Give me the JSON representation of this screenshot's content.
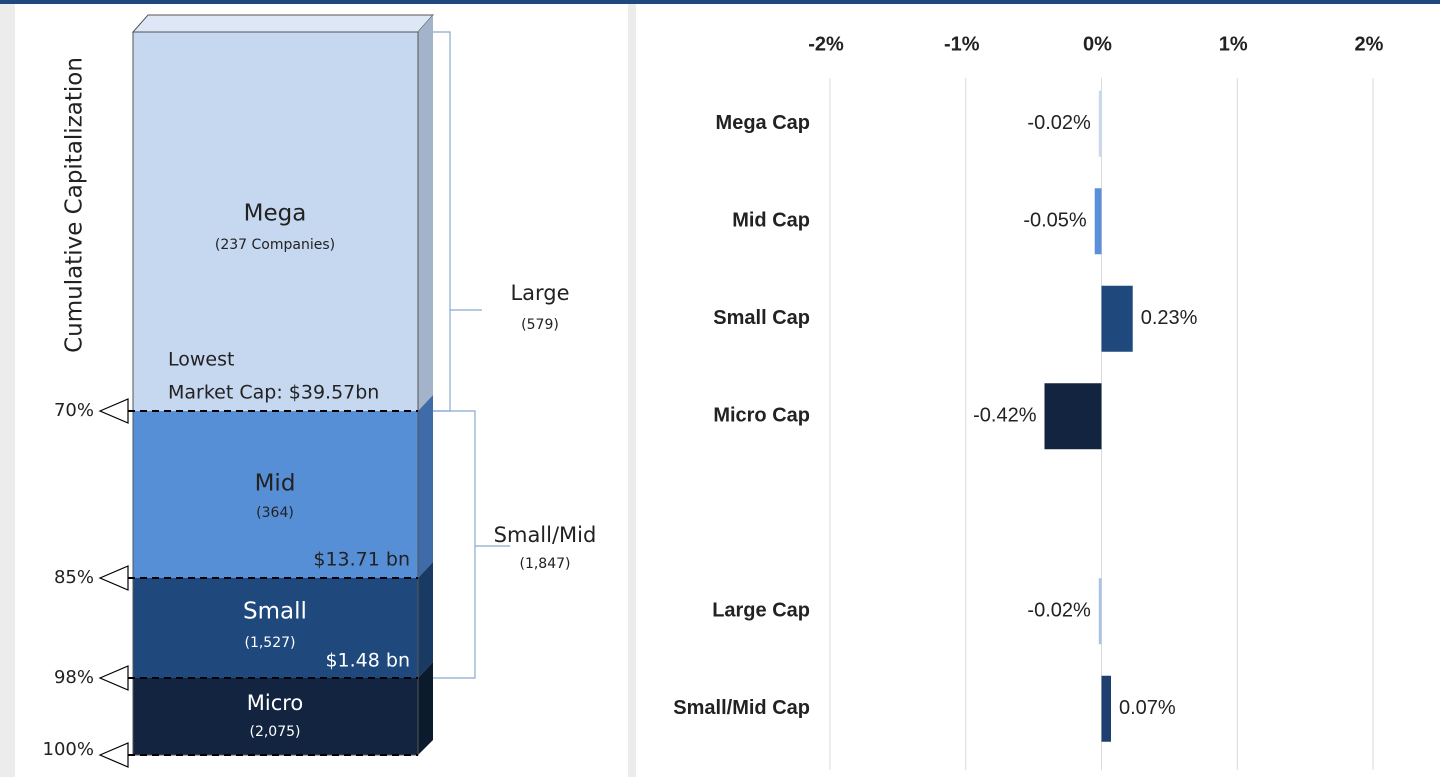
{
  "diagram": {
    "y_axis_label": "Cumulative Capitalization",
    "segments": [
      {
        "name": "Mega",
        "count": "(237 Companies)",
        "threshold": [
          "Lowest",
          "Market Cap: $39.57bn"
        ]
      },
      {
        "name": "Mid",
        "count": "(364)",
        "threshold": [
          "$13.71 bn"
        ]
      },
      {
        "name": "Small",
        "count": "(1,527)",
        "threshold": [
          "$1.48 bn"
        ]
      },
      {
        "name": "Micro",
        "count": "(2,075)"
      }
    ],
    "levels": [
      "70%",
      "85%",
      "98%",
      "100%"
    ],
    "groups": [
      {
        "name": "Large",
        "count": "(579)"
      },
      {
        "name": "Small/Mid",
        "count": "(1,847)"
      }
    ]
  },
  "chart_data": {
    "type": "hbar",
    "categories": [
      "Mega Cap",
      "Mid Cap",
      "Small Cap",
      "Micro Cap",
      null,
      "Large Cap",
      "Small/Mid Cap"
    ],
    "values": [
      -0.02,
      -0.05,
      0.23,
      -0.42,
      null,
      -0.02,
      0.07
    ],
    "value_labels": [
      "-0.02%",
      "-0.05%",
      "0.23%",
      "-0.42%",
      null,
      "-0.02%",
      "0.07%"
    ],
    "colors": [
      "#c9d8ee",
      "#5b8fd9",
      "#1f497d",
      "#12243f",
      null,
      "#a9c3e8",
      "#1f3f6e"
    ],
    "xlim": [
      -2,
      2
    ],
    "xticks": [
      {
        "value": -2,
        "label": "-2%"
      },
      {
        "value": -1,
        "label": "-1%"
      },
      {
        "value": 0,
        "label": "0%"
      },
      {
        "value": 1,
        "label": "1%"
      },
      {
        "value": 2,
        "label": "2%"
      }
    ],
    "grid": true
  }
}
